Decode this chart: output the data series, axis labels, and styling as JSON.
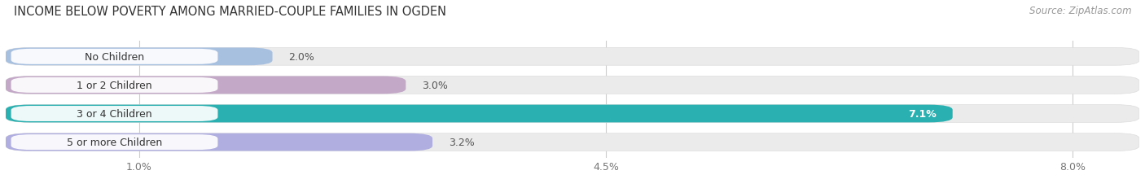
{
  "title": "INCOME BELOW POVERTY AMONG MARRIED-COUPLE FAMILIES IN OGDEN",
  "source": "Source: ZipAtlas.com",
  "categories": [
    "No Children",
    "1 or 2 Children",
    "3 or 4 Children",
    "5 or more Children"
  ],
  "values": [
    2.0,
    3.0,
    7.1,
    3.2
  ],
  "bar_colors": [
    "#a8c0e0",
    "#c4a8c8",
    "#2ab0b0",
    "#b0aee0"
  ],
  "label_bg_colors": [
    "#ffffff",
    "#ffffff",
    "#1a9898",
    "#ffffff"
  ],
  "label_text_colors": [
    "#444444",
    "#444444",
    "#444444",
    "#444444"
  ],
  "value_label_colors": [
    "#555555",
    "#555555",
    "#ffffff",
    "#555555"
  ],
  "tick_labels": [
    "1.0%",
    "4.5%",
    "8.0%"
  ],
  "tick_values": [
    1.0,
    4.5,
    8.0
  ],
  "xlim": [
    0,
    8.5
  ],
  "bar_height": 0.62,
  "title_fontsize": 10.5,
  "source_fontsize": 8.5,
  "value_fontsize": 9,
  "tick_fontsize": 9,
  "category_fontsize": 9,
  "background_color": "#ffffff",
  "bar_bg_color": "#ebebeb",
  "grid_color": "#cccccc"
}
